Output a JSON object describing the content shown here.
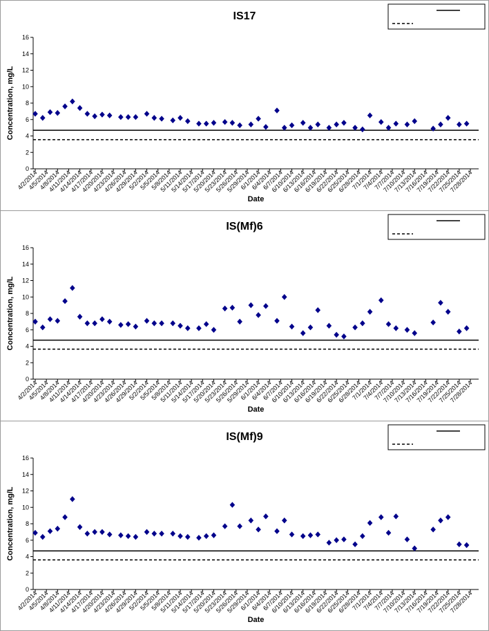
{
  "colors": {
    "marker": "#00008b",
    "line": "#000000",
    "axis": "#000000"
  },
  "date_ticks": [
    "4/2/2014",
    "4/5/2014",
    "4/8/2014",
    "4/11/2014",
    "4/14/2014",
    "4/17/2014",
    "4/20/2014",
    "4/23/2014",
    "4/26/2014",
    "4/29/2014",
    "5/2/2014",
    "5/5/2014",
    "5/8/2014",
    "5/11/2014",
    "5/14/2014",
    "5/17/2014",
    "5/20/2014",
    "5/23/2014",
    "5/26/2014",
    "5/29/2014",
    "6/1/2014",
    "6/4/2014",
    "6/7/2014",
    "6/10/2014",
    "6/13/2014",
    "6/16/2014",
    "6/19/2014",
    "6/22/2014",
    "6/25/2014",
    "6/28/2014",
    "7/1/2014",
    "7/4/2014",
    "7/7/2014",
    "7/10/2014",
    "7/13/2014",
    "7/16/2014",
    "7/19/2014",
    "7/22/2014",
    "7/25/2014",
    "7/28/2014"
  ],
  "chart_data": [
    {
      "type": "scatter",
      "title": "IS17",
      "xlabel": "Date",
      "ylabel": "Concentration, mg/L",
      "ylim": [
        0,
        16
      ],
      "yticks": [
        0,
        2,
        4,
        6,
        8,
        10,
        12,
        14,
        16
      ],
      "grid": false,
      "legend_position": "top-right",
      "reference_lines": [
        {
          "style": "solid",
          "y": 4.7
        },
        {
          "style": "dashed",
          "y": 3.55
        }
      ],
      "points": [
        [
          "4/2/2014",
          6.7
        ],
        [
          "4/4/2014",
          6.2
        ],
        [
          "4/6/2014",
          6.9
        ],
        [
          "4/8/2014",
          6.8
        ],
        [
          "4/10/2014",
          7.6
        ],
        [
          "4/12/2014",
          8.2
        ],
        [
          "4/14/2014",
          7.4
        ],
        [
          "4/16/2014",
          6.7
        ],
        [
          "4/18/2014",
          6.4
        ],
        [
          "4/20/2014",
          6.6
        ],
        [
          "4/22/2014",
          6.5
        ],
        [
          "4/25/2014",
          6.3
        ],
        [
          "4/27/2014",
          6.3
        ],
        [
          "4/29/2014",
          6.3
        ],
        [
          "5/2/2014",
          6.7
        ],
        [
          "5/4/2014",
          6.2
        ],
        [
          "5/6/2014",
          6.1
        ],
        [
          "5/9/2014",
          5.9
        ],
        [
          "5/11/2014",
          6.2
        ],
        [
          "5/13/2014",
          5.8
        ],
        [
          "5/16/2014",
          5.5
        ],
        [
          "5/18/2014",
          5.5
        ],
        [
          "5/20/2014",
          5.6
        ],
        [
          "5/23/2014",
          5.7
        ],
        [
          "5/25/2014",
          5.6
        ],
        [
          "5/27/2014",
          5.3
        ],
        [
          "5/30/2014",
          5.4
        ],
        [
          "6/1/2014",
          6.1
        ],
        [
          "6/3/2014",
          5.1
        ],
        [
          "6/6/2014",
          7.1
        ],
        [
          "6/8/2014",
          5.0
        ],
        [
          "6/10/2014",
          5.3
        ],
        [
          "6/13/2014",
          5.6
        ],
        [
          "6/15/2014",
          5.0
        ],
        [
          "6/17/2014",
          5.4
        ],
        [
          "6/20/2014",
          5.0
        ],
        [
          "6/22/2014",
          5.4
        ],
        [
          "6/24/2014",
          5.6
        ],
        [
          "6/27/2014",
          5.0
        ],
        [
          "6/29/2014",
          4.8
        ],
        [
          "7/1/2014",
          6.5
        ],
        [
          "7/4/2014",
          5.7
        ],
        [
          "7/6/2014",
          5.0
        ],
        [
          "7/8/2014",
          5.5
        ],
        [
          "7/11/2014",
          5.4
        ],
        [
          "7/13/2014",
          5.8
        ],
        [
          "7/18/2014",
          4.9
        ],
        [
          "7/20/2014",
          5.4
        ],
        [
          "7/22/2014",
          6.2
        ],
        [
          "7/25/2014",
          5.4
        ],
        [
          "7/27/2014",
          5.5
        ]
      ]
    },
    {
      "type": "scatter",
      "title": "IS(Mf)6",
      "xlabel": "Date",
      "ylabel": "Concentration, mg/L",
      "ylim": [
        0,
        16
      ],
      "yticks": [
        0,
        2,
        4,
        6,
        8,
        10,
        12,
        14,
        16
      ],
      "grid": false,
      "legend_position": "top-right",
      "reference_lines": [
        {
          "style": "solid",
          "y": 4.75
        },
        {
          "style": "dashed",
          "y": 3.65
        }
      ],
      "points": [
        [
          "4/2/2014",
          7.0
        ],
        [
          "4/4/2014",
          6.3
        ],
        [
          "4/6/2014",
          7.3
        ],
        [
          "4/8/2014",
          7.1
        ],
        [
          "4/10/2014",
          9.5
        ],
        [
          "4/12/2014",
          11.1
        ],
        [
          "4/14/2014",
          7.6
        ],
        [
          "4/16/2014",
          6.8
        ],
        [
          "4/18/2014",
          6.8
        ],
        [
          "4/20/2014",
          7.3
        ],
        [
          "4/22/2014",
          7.0
        ],
        [
          "4/25/2014",
          6.6
        ],
        [
          "4/27/2014",
          6.7
        ],
        [
          "4/29/2014",
          6.4
        ],
        [
          "5/2/2014",
          7.1
        ],
        [
          "5/4/2014",
          6.8
        ],
        [
          "5/6/2014",
          6.8
        ],
        [
          "5/9/2014",
          6.8
        ],
        [
          "5/11/2014",
          6.5
        ],
        [
          "5/13/2014",
          6.2
        ],
        [
          "5/16/2014",
          6.2
        ],
        [
          "5/18/2014",
          6.7
        ],
        [
          "5/20/2014",
          6.0
        ],
        [
          "5/23/2014",
          8.6
        ],
        [
          "5/25/2014",
          8.7
        ],
        [
          "5/27/2014",
          7.0
        ],
        [
          "5/30/2014",
          9.0
        ],
        [
          "6/1/2014",
          7.8
        ],
        [
          "6/3/2014",
          8.9
        ],
        [
          "6/6/2014",
          7.1
        ],
        [
          "6/8/2014",
          10.0
        ],
        [
          "6/10/2014",
          6.4
        ],
        [
          "6/13/2014",
          5.6
        ],
        [
          "6/15/2014",
          6.3
        ],
        [
          "6/17/2014",
          8.4
        ],
        [
          "6/20/2014",
          6.5
        ],
        [
          "6/22/2014",
          5.4
        ],
        [
          "6/24/2014",
          5.2
        ],
        [
          "6/27/2014",
          6.3
        ],
        [
          "6/29/2014",
          6.8
        ],
        [
          "7/1/2014",
          8.2
        ],
        [
          "7/4/2014",
          9.6
        ],
        [
          "7/6/2014",
          6.7
        ],
        [
          "7/8/2014",
          6.2
        ],
        [
          "7/11/2014",
          6.0
        ],
        [
          "7/13/2014",
          5.6
        ],
        [
          "7/18/2014",
          6.9
        ],
        [
          "7/20/2014",
          9.3
        ],
        [
          "7/22/2014",
          8.2
        ],
        [
          "7/25/2014",
          5.8
        ],
        [
          "7/27/2014",
          6.2
        ]
      ]
    },
    {
      "type": "scatter",
      "title": "IS(Mf)9",
      "xlabel": "Date",
      "ylabel": "Concentration, mg/L",
      "ylim": [
        0,
        16
      ],
      "yticks": [
        0,
        2,
        4,
        6,
        8,
        10,
        12,
        14,
        16
      ],
      "grid": false,
      "legend_position": "top-right",
      "reference_lines": [
        {
          "style": "solid",
          "y": 4.7
        },
        {
          "style": "dashed",
          "y": 3.6
        }
      ],
      "points": [
        [
          "4/2/2014",
          6.9
        ],
        [
          "4/4/2014",
          6.4
        ],
        [
          "4/6/2014",
          7.1
        ],
        [
          "4/8/2014",
          7.4
        ],
        [
          "4/10/2014",
          8.8
        ],
        [
          "4/12/2014",
          11.0
        ],
        [
          "4/14/2014",
          7.6
        ],
        [
          "4/16/2014",
          6.8
        ],
        [
          "4/18/2014",
          7.0
        ],
        [
          "4/20/2014",
          7.0
        ],
        [
          "4/22/2014",
          6.7
        ],
        [
          "4/25/2014",
          6.6
        ],
        [
          "4/27/2014",
          6.5
        ],
        [
          "4/29/2014",
          6.4
        ],
        [
          "5/2/2014",
          7.0
        ],
        [
          "5/4/2014",
          6.8
        ],
        [
          "5/6/2014",
          6.8
        ],
        [
          "5/9/2014",
          6.8
        ],
        [
          "5/11/2014",
          6.5
        ],
        [
          "5/13/2014",
          6.4
        ],
        [
          "5/16/2014",
          6.3
        ],
        [
          "5/18/2014",
          6.5
        ],
        [
          "5/20/2014",
          6.6
        ],
        [
          "5/23/2014",
          7.7
        ],
        [
          "5/25/2014",
          10.3
        ],
        [
          "5/27/2014",
          7.7
        ],
        [
          "5/30/2014",
          8.4
        ],
        [
          "6/1/2014",
          7.3
        ],
        [
          "6/3/2014",
          8.9
        ],
        [
          "6/6/2014",
          7.1
        ],
        [
          "6/8/2014",
          8.4
        ],
        [
          "6/10/2014",
          6.7
        ],
        [
          "6/13/2014",
          6.5
        ],
        [
          "6/15/2014",
          6.6
        ],
        [
          "6/17/2014",
          6.7
        ],
        [
          "6/20/2014",
          5.7
        ],
        [
          "6/22/2014",
          6.0
        ],
        [
          "6/24/2014",
          6.1
        ],
        [
          "6/27/2014",
          5.5
        ],
        [
          "6/29/2014",
          6.5
        ],
        [
          "7/1/2014",
          8.1
        ],
        [
          "7/4/2014",
          8.8
        ],
        [
          "7/6/2014",
          6.9
        ],
        [
          "7/8/2014",
          8.9
        ],
        [
          "7/11/2014",
          6.1
        ],
        [
          "7/13/2014",
          5.0
        ],
        [
          "7/18/2014",
          7.3
        ],
        [
          "7/20/2014",
          8.4
        ],
        [
          "7/22/2014",
          8.8
        ],
        [
          "7/25/2014",
          5.5
        ],
        [
          "7/27/2014",
          5.4
        ]
      ]
    }
  ]
}
